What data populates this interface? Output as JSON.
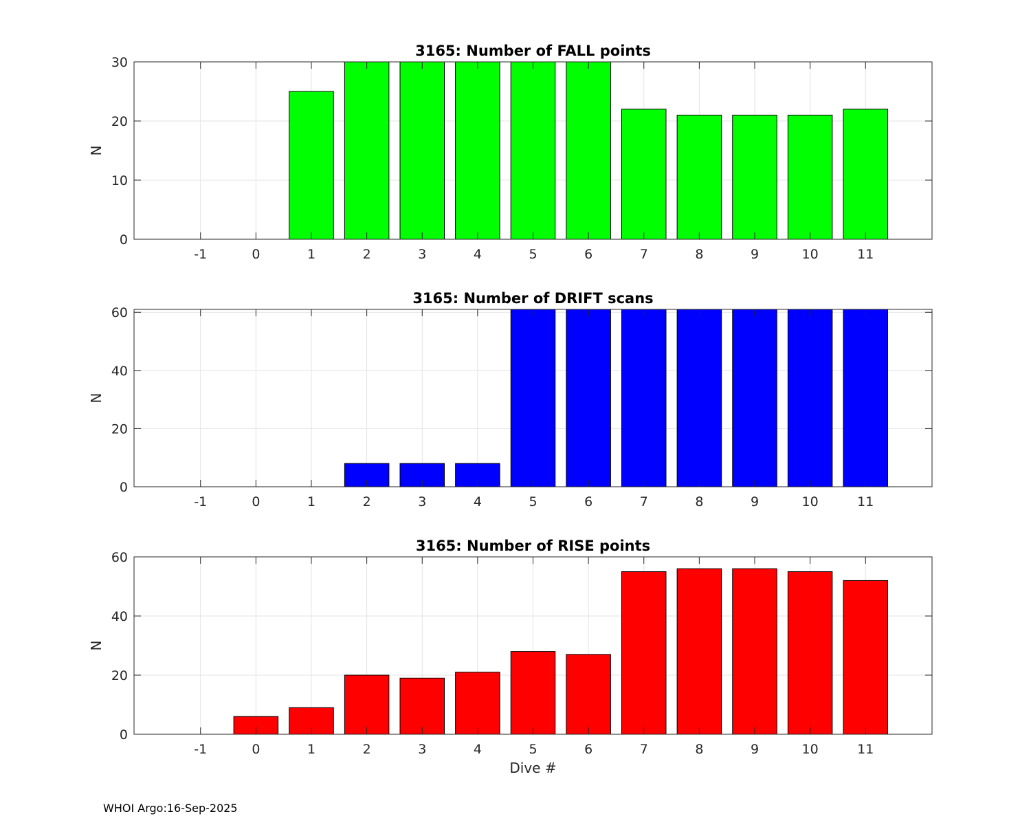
{
  "chart_data": [
    {
      "type": "bar",
      "title": "3165: Number of FALL points",
      "xlabel": "",
      "ylabel": "N",
      "categories": [
        -1,
        0,
        1,
        2,
        3,
        4,
        5,
        6,
        7,
        8,
        9,
        10,
        11
      ],
      "values": [
        0,
        0,
        25,
        30,
        30,
        30,
        30,
        30,
        22,
        21,
        21,
        21,
        22
      ],
      "xlim": [
        -2.2,
        12.2
      ],
      "ylim": [
        0,
        30
      ],
      "yticks": [
        0,
        10,
        20,
        30
      ],
      "grid": true,
      "color": "#00ff00"
    },
    {
      "type": "bar",
      "title": "3165: Number of DRIFT scans",
      "xlabel": "",
      "ylabel": "N",
      "categories": [
        -1,
        0,
        1,
        2,
        3,
        4,
        5,
        6,
        7,
        8,
        9,
        10,
        11
      ],
      "values": [
        0,
        0,
        0,
        8,
        8,
        8,
        61,
        61,
        61,
        61,
        61,
        61,
        61
      ],
      "xlim": [
        -2.2,
        12.2
      ],
      "ylim": [
        0,
        61
      ],
      "yticks": [
        0,
        20,
        40,
        60
      ],
      "grid": true,
      "color": "#0000ff"
    },
    {
      "type": "bar",
      "title": "3165: Number of RISE points",
      "xlabel": "Dive #",
      "ylabel": "N",
      "categories": [
        -1,
        0,
        1,
        2,
        3,
        4,
        5,
        6,
        7,
        8,
        9,
        10,
        11
      ],
      "values": [
        0,
        6,
        9,
        20,
        19,
        21,
        28,
        27,
        55,
        56,
        56,
        55,
        52
      ],
      "xlim": [
        -2.2,
        12.2
      ],
      "ylim": [
        0,
        60
      ],
      "yticks": [
        0,
        20,
        40,
        60
      ],
      "grid": true,
      "color": "#ff0000"
    }
  ],
  "footer": "WHOI Argo:16-Sep-2025"
}
